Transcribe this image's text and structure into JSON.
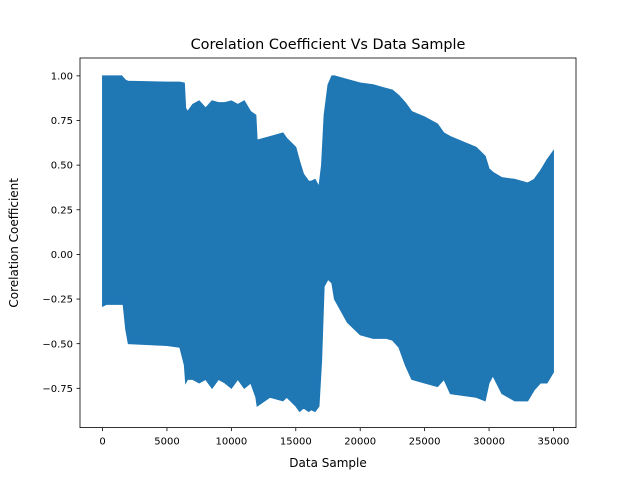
{
  "chart_data": {
    "type": "area",
    "title": "Corelation Coefficient Vs Data Sample",
    "xlabel": "Data Sample",
    "ylabel": "Corelation Coefficient",
    "xlim": [
      -1750,
      36750
    ],
    "ylim": [
      -0.97,
      1.1
    ],
    "grid": false,
    "x_ticks": [
      0,
      5000,
      10000,
      15000,
      20000,
      25000,
      30000,
      35000
    ],
    "x_tick_labels": [
      "0",
      "5000",
      "10000",
      "15000",
      "20000",
      "25000",
      "30000",
      "35000"
    ],
    "y_ticks": [
      1.0,
      0.75,
      0.5,
      0.25,
      0.0,
      -0.25,
      -0.5,
      -0.75
    ],
    "y_tick_labels": [
      "1.00",
      "0.75",
      "0.50",
      "0.25",
      "0.00",
      "−0.25",
      "−0.50",
      "−0.75"
    ],
    "series": [
      {
        "color": "#1f77b4",
        "x": [
          0,
          300,
          1500,
          1600,
          1800,
          2000,
          5000,
          6000,
          6350,
          6450,
          6600,
          7000,
          7500,
          8000,
          8500,
          9000,
          9500,
          10000,
          10500,
          11000,
          11500,
          11900,
          12000,
          13000,
          14000,
          14300,
          15000,
          15300,
          15600,
          16000,
          16200,
          16500,
          16800,
          17000,
          17200,
          17500,
          17800,
          18000,
          19000,
          20000,
          21000,
          22000,
          22500,
          23000,
          23500,
          24000,
          25000,
          26000,
          26500,
          27000,
          28000,
          29000,
          29700,
          30000,
          30300,
          31000,
          32000,
          33000,
          33500,
          34000,
          34500,
          35000
        ],
        "upper": [
          1.0,
          1.0,
          1.0,
          0.99,
          0.975,
          0.97,
          0.965,
          0.965,
          0.96,
          0.82,
          0.8,
          0.84,
          0.86,
          0.82,
          0.86,
          0.85,
          0.85,
          0.86,
          0.84,
          0.86,
          0.8,
          0.78,
          0.64,
          0.66,
          0.68,
          0.65,
          0.6,
          0.52,
          0.45,
          0.41,
          0.41,
          0.42,
          0.38,
          0.5,
          0.78,
          0.95,
          1.0,
          1.0,
          0.98,
          0.96,
          0.95,
          0.93,
          0.92,
          0.89,
          0.85,
          0.8,
          0.77,
          0.73,
          0.68,
          0.66,
          0.63,
          0.6,
          0.55,
          0.48,
          0.46,
          0.43,
          0.42,
          0.4,
          0.42,
          0.47,
          0.53,
          0.58
        ],
        "lower": [
          -0.29,
          -0.28,
          -0.28,
          -0.28,
          -0.42,
          -0.5,
          -0.51,
          -0.52,
          -0.62,
          -0.72,
          -0.7,
          -0.7,
          -0.72,
          -0.7,
          -0.75,
          -0.7,
          -0.72,
          -0.75,
          -0.7,
          -0.75,
          -0.72,
          -0.8,
          -0.85,
          -0.8,
          -0.82,
          -0.8,
          -0.85,
          -0.88,
          -0.86,
          -0.88,
          -0.87,
          -0.88,
          -0.85,
          -0.6,
          -0.18,
          -0.14,
          -0.16,
          -0.25,
          -0.38,
          -0.45,
          -0.47,
          -0.47,
          -0.48,
          -0.52,
          -0.62,
          -0.7,
          -0.72,
          -0.74,
          -0.7,
          -0.78,
          -0.79,
          -0.8,
          -0.82,
          -0.72,
          -0.68,
          -0.78,
          -0.82,
          -0.82,
          -0.76,
          -0.72,
          -0.72,
          -0.66
        ]
      }
    ]
  }
}
